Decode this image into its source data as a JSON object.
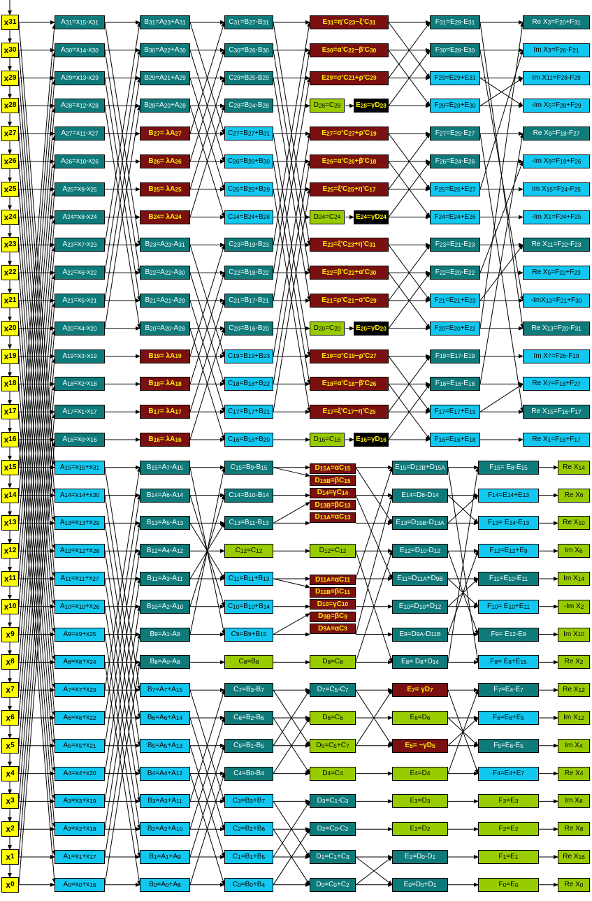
{
  "colors": {
    "yellow": "#ffff00",
    "teal": "#0f7a7a",
    "cyan": "#12c8f0",
    "maroon": "#7a1010",
    "lime": "#99cc00",
    "black": "#000000"
  },
  "inputs": [
    "x31",
    "x30",
    "x29",
    "x28",
    "x27",
    "x26",
    "x25",
    "x24",
    "x23",
    "x22",
    "x21",
    "x20",
    "x19",
    "x18",
    "x17",
    "x16",
    "x15",
    "x14",
    "x13",
    "x12",
    "x11",
    "x10",
    "x9",
    "x8",
    "x7",
    "x6",
    "x5",
    "x4",
    "x3",
    "x2",
    "x1",
    "x0"
  ],
  "stage_a": [
    "A31=x15-x31",
    "A30=x14-x30",
    "A29=x13-x29",
    "A28=x12-x28",
    "A27=x11-x27",
    "A26=x10-x26",
    "A25=x9-x25",
    "A24=x8-x24",
    "A23=x7-x23",
    "A22=x6-x22",
    "A21=x5-x21",
    "A20=x4-x20",
    "A19=x3-x19",
    "A18=x2-x18",
    "A17=x1-x17",
    "A16=x0-x16",
    "A15=x15+x31",
    "A14=x14+x30",
    "A13=x13+x29",
    "A12=x12+x28",
    "A11=x11+x27",
    "A10=x10+x26",
    "A9=x9+x25",
    "A8=x8+x24",
    "A7=x7+x23",
    "A6=x6+x22",
    "A5=x5+x21",
    "A4=x4+x20",
    "A3=x3+x19",
    "A2=x2+x18",
    "A1=x1+x17",
    "A0=x0+x16"
  ],
  "stage_b": [
    "B31=A23+A31",
    "B30=A22+A30",
    "B29=A21+A29",
    "B28=A20+A28",
    "B27 = λA27",
    "B26 = λA26",
    "B25 = λA25",
    "B24 = λA24",
    "B23=A23-A31",
    "B22=A22-A30",
    "B21=A21-A29",
    "B20=A20-A28",
    "B19 = λA19",
    "B18 = λA18",
    "B17 = λA17",
    "B16 = λA16",
    "B15=A7-A15",
    "B14=A6-A14",
    "B13=A5-A13",
    "B12=A4-A12",
    "B11=A3-A11",
    "B10=A2-A10",
    "B9=A1-A9",
    "B8=A0-A8",
    "B7=A7+A15",
    "B6=A6+A14",
    "B5=A5+A13",
    "B4=A4+A12",
    "B3=A3+A11",
    "B2=A2+A10",
    "B1=A1+A9",
    "B0=A0+A8"
  ],
  "stage_c": [
    "C31=B27-B31",
    "C30=B26-B30",
    "C29=B25-B29",
    "C28=B24-B28",
    "C27=B27+B31",
    "C26=B26+B30",
    "C25=B25+B29",
    "C24=B24+B28",
    "C23=B19-B23",
    "C22=B18-B22",
    "C21=B17-B21",
    "C20=B16-B20",
    "C19=B19+B23",
    "C18=B18+B22",
    "C17=B17+B21",
    "C16=B16+B20",
    "C15=B9-B15",
    "C14=B10-B14",
    "C13=B11-B13",
    "C12=C12",
    "C11=B11+B13",
    "C10=B10+B14",
    "C9=B9+B15",
    "C8=B8",
    "C7=B3-B7",
    "C6=B2-B6",
    "C5=B1-B5",
    "C4=B0-B4",
    "C3=B3+B7",
    "C2=B2+B6",
    "C1=B1+B5",
    "C0=B0+B4"
  ],
  "stage_e_upper": [
    "E31=η'C23−ξ'C31",
    "E30=α'C22−β'C30",
    "E29=σ'C21+ρ'C29",
    "D28=C28",
    "E27=σ'C27+ρ'C19",
    "E26=α'C26+β'C18",
    "E25=ξ'C25+η'C17",
    "D24=C24",
    "E23=ξ'C23+η'C31",
    "E22=β'C22+α'C30",
    "E21=ρ'C21−σ'C29",
    "D20=C20",
    "E19=σ'C19−ρ'C27",
    "E18=α'C18−β'C26",
    "E17=ξ'C17−η'C25",
    "D16=C16"
  ],
  "gamma_upper": [
    "E28=γD28",
    "E24=γD24",
    "E20=γD20",
    "E16=γD16"
  ],
  "stage_d_lower": [
    "D15A=αC15",
    "D15B=βC15",
    "D14=γC14",
    "D13B=βC13",
    "D13A=αC13",
    "D12=C12",
    "D11A=αC11",
    "D11B=βC11",
    "D10=γC10",
    "D9B=βC9",
    "D9A=αC9",
    "D8=C8",
    "D7=C5-C7",
    "D6=C6",
    "D5=C5+C7",
    "D4=C4",
    "D3=C1-C3",
    "D2=C0-C2",
    "D1=C1+C3",
    "D0=C0+C2"
  ],
  "stage_e_lower": [
    "E15=D13B+D15A",
    "E14=D8-D14",
    "E13=D15B-D13A",
    "E12=D10-D12",
    "E11=D11A+D9B",
    "E10=D10+D12",
    "E9=D9A-D11B",
    "E8= D8+D14",
    "E7 = γD7",
    "E6=D6",
    "E5 = −γD5",
    "E4=D4",
    "E3=D3",
    "E2=D2",
    "E1=D0-D1",
    "E0=D0+D1"
  ],
  "stage_f_upper": [
    "F31=E29-E31",
    "F30=E28-E30",
    "F29=E29+E31",
    "F28=E28+E30",
    "F27=E25-E27",
    "F26=E24-E26",
    "F25=E25+E27",
    "F24=E24+E26",
    "F23=E21-E23",
    "F22=E20-E22",
    "F21=E21+E23",
    "F20=E20+E22",
    "F19=E17-E19",
    "F18=E16-E18",
    "F17=E17+E19",
    "F16=E16+E18"
  ],
  "stage_f_lower": [
    "F15 = E8-E15",
    "F14=E14+E13",
    "F13 = E14-E13",
    "F12=E12+E9",
    "F11=E10-E11",
    "F10 = E10+E11",
    "F9 = E12-E9",
    "F8 = E8+E15",
    "F7=E4-E7",
    "F6=E6+E5",
    "F5=E6-E5",
    "F4=E4+E7",
    "F3=E3",
    "F2=E2",
    "F1=E1",
    "F0=E0"
  ],
  "outputs_upper": [
    "Re X3=F20+F31",
    "Im X3=F26-F21",
    "Im X11=F28-F29",
    "-Im X5=F28+F29",
    "Re X9=F18-F27",
    "-Im X9=F19+F26",
    "Im X15=F24-F25",
    "-Im X1=F24+F25",
    "Re X11=F22-F23",
    "Re X5=F22+F23",
    "-ImX13=F21+F30",
    "Re X13=F20-F31",
    "Im X7=F26-F19",
    "Re X7=F18+F27",
    "Re X15=F16-F17",
    "Re X1=F16+F17"
  ],
  "outputs_lower": [
    "Re X14",
    "Re X6",
    "Re X10",
    "Im X6",
    "Im X14",
    "-Im X2",
    "Im X10",
    "Re X2",
    "Re X12",
    "Im X12",
    "Im X4",
    "Re X4",
    "Im X8",
    "Re X8",
    "Re X16",
    "Re X0"
  ]
}
